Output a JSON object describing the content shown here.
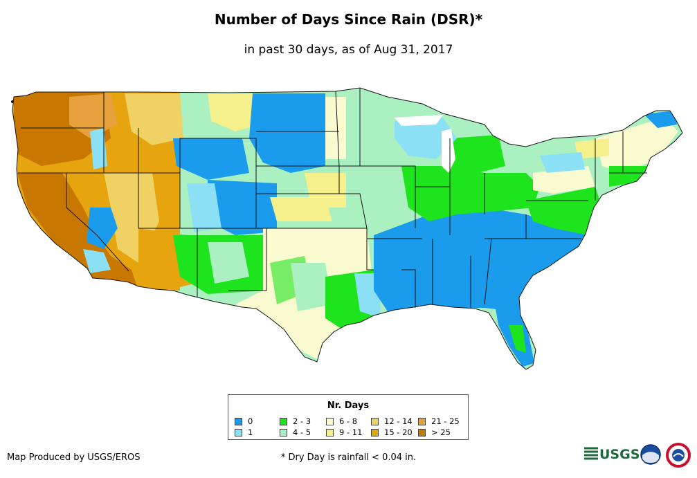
{
  "title": "Number of Days Since Rain (DSR)*",
  "subtitle": "in past 30 days, as of Aug 31, 2017",
  "legend": {
    "title": "Nr. Days",
    "items": [
      {
        "label": "0",
        "color": "#1a9bec"
      },
      {
        "label": "1",
        "color": "#8ce0f5"
      },
      {
        "label": "2 - 3",
        "color": "#1ee41e"
      },
      {
        "label": "4 - 5",
        "color": "#aaf0c0"
      },
      {
        "label": "6 - 8",
        "color": "#fafad0"
      },
      {
        "label": "9 - 11",
        "color": "#f5f08c"
      },
      {
        "label": "12 - 14",
        "color": "#f0d264"
      },
      {
        "label": "15 - 20",
        "color": "#e6a50f"
      },
      {
        "label": "21 - 25",
        "color": "#e6a03c"
      },
      {
        "label": "> 25",
        "color": "#c87800"
      }
    ]
  },
  "credit": "Map Produced by USGS/EROS",
  "footnote": "* Dry Day is rainfall < 0.04 in.",
  "logos": {
    "usgs": "USGS",
    "agency_icons": [
      "noaa-icon",
      "national-weather-service-icon"
    ]
  }
}
